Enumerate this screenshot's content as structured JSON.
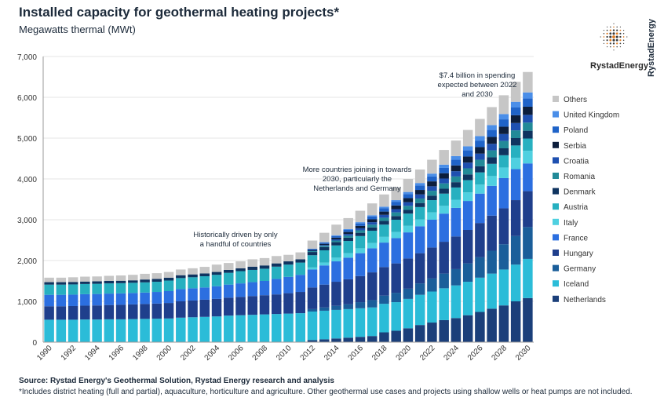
{
  "header": {
    "title": "Installed capacity for geothermal heating projects*",
    "subtitle": "Megawatts thermal (MWt)"
  },
  "brand": {
    "name": "RystadEnergy",
    "vertical": "RystadEnergy"
  },
  "footer": {
    "source": "Source: Rystad Energy's Geothermal Solution, Rystad Energy research and analysis",
    "note": "*Includes district heating (full and partial), aquaculture, horticulture and agriculture. Other geothermal use cases and projects using shallow wells or heat pumps are not included."
  },
  "annotations": [
    {
      "line1": "Historically driven by only",
      "line2": "a handful of countries"
    },
    {
      "line1": "More countries joining in towards",
      "line2": "2030, particularly the",
      "line3": "Netherlands and Germany"
    },
    {
      "line1": "$7.4 billion in spending",
      "line2": "expected between 2022",
      "line3": "and 2030"
    }
  ],
  "chart_data": {
    "type": "bar",
    "stacked": true,
    "ylim": [
      0,
      7000
    ],
    "yticks": [
      "0",
      "1,000",
      "2,000",
      "3,000",
      "4,000",
      "5,000",
      "6,000",
      "7,000"
    ],
    "xticks": [
      "1990",
      "1992",
      "1994",
      "1996",
      "1998",
      "2000",
      "2002",
      "2004",
      "2006",
      "2008",
      "2010",
      "2012",
      "2014",
      "2016",
      "2018",
      "2020",
      "2022",
      "2024",
      "2026",
      "2028",
      "2030"
    ],
    "categories": [
      "1990",
      "1991",
      "1992",
      "1993",
      "1994",
      "1995",
      "1996",
      "1997",
      "1998",
      "1999",
      "2000",
      "2001",
      "2002",
      "2003",
      "2004",
      "2005",
      "2006",
      "2007",
      "2008",
      "2009",
      "2010",
      "2011",
      "2012",
      "2013",
      "2014",
      "2015",
      "2016",
      "2017",
      "2018",
      "2019",
      "2020",
      "2021",
      "2022",
      "2023",
      "2024",
      "2025",
      "2026",
      "2027",
      "2028",
      "2029",
      "2030"
    ],
    "series": [
      {
        "name": "Netherlands",
        "color": "#1b3f7a",
        "values": [
          0,
          0,
          0,
          0,
          0,
          0,
          0,
          0,
          0,
          0,
          0,
          0,
          0,
          0,
          0,
          0,
          0,
          0,
          0,
          0,
          0,
          0,
          50,
          70,
          90,
          110,
          130,
          150,
          240,
          280,
          340,
          420,
          480,
          540,
          590,
          660,
          740,
          820,
          900,
          1000,
          1080
        ]
      },
      {
        "name": "Iceland",
        "color": "#2bbcd8",
        "values": [
          550,
          550,
          550,
          555,
          555,
          560,
          560,
          565,
          570,
          575,
          580,
          600,
          610,
          620,
          630,
          650,
          660,
          670,
          680,
          690,
          700,
          710,
          700,
          700,
          700,
          700,
          700,
          700,
          700,
          700,
          720,
          740,
          760,
          780,
          800,
          820,
          840,
          860,
          880,
          900,
          960
        ]
      },
      {
        "name": "Germany",
        "color": "#1a5e9a",
        "values": [
          0,
          0,
          0,
          0,
          0,
          0,
          0,
          0,
          0,
          0,
          0,
          0,
          0,
          0,
          0,
          0,
          0,
          0,
          0,
          0,
          0,
          0,
          60,
          80,
          100,
          120,
          150,
          180,
          200,
          230,
          250,
          280,
          320,
          360,
          400,
          450,
          500,
          560,
          620,
          700,
          780
        ]
      },
      {
        "name": "Hungary",
        "color": "#1f3f8c",
        "values": [
          330,
          330,
          335,
          340,
          345,
          350,
          355,
          360,
          365,
          370,
          380,
          400,
          410,
          420,
          430,
          440,
          450,
          460,
          470,
          480,
          500,
          520,
          530,
          560,
          590,
          610,
          640,
          680,
          700,
          720,
          740,
          740,
          760,
          780,
          800,
          820,
          840,
          860,
          880,
          880,
          880
        ]
      },
      {
        "name": "France",
        "color": "#2c6fe0",
        "values": [
          280,
          280,
          280,
          280,
          280,
          280,
          280,
          280,
          280,
          285,
          290,
          300,
          300,
          300,
          310,
          320,
          330,
          340,
          350,
          380,
          400,
          420,
          440,
          470,
          500,
          530,
          560,
          590,
          600,
          620,
          640,
          660,
          680,
          690,
          700,
          710,
          720,
          730,
          740,
          760,
          680
        ]
      },
      {
        "name": "Italy",
        "color": "#4fd0e0",
        "values": [
          0,
          0,
          0,
          0,
          0,
          0,
          0,
          0,
          0,
          0,
          0,
          0,
          0,
          0,
          0,
          0,
          0,
          0,
          0,
          0,
          0,
          0,
          50,
          70,
          90,
          110,
          120,
          130,
          140,
          150,
          160,
          170,
          180,
          190,
          200,
          210,
          220,
          240,
          260,
          280,
          310
        ]
      },
      {
        "name": "Austria",
        "color": "#27b0c0",
        "values": [
          250,
          250,
          250,
          250,
          250,
          250,
          250,
          250,
          250,
          250,
          260,
          270,
          270,
          275,
          280,
          290,
          300,
          300,
          300,
          300,
          300,
          300,
          300,
          300,
          300,
          300,
          300,
          300,
          300,
          300,
          300,
          300,
          300,
          300,
          300,
          300,
          300,
          300,
          300,
          300,
          300
        ]
      },
      {
        "name": "Denmark",
        "color": "#0f3460",
        "values": [
          60,
          60,
          60,
          60,
          60,
          60,
          60,
          60,
          70,
          70,
          70,
          70,
          70,
          70,
          70,
          70,
          70,
          80,
          80,
          80,
          80,
          80,
          80,
          80,
          80,
          80,
          80,
          80,
          90,
          90,
          90,
          100,
          110,
          120,
          130,
          140,
          150,
          160,
          170,
          180,
          190
        ]
      },
      {
        "name": "Romania",
        "color": "#228a98",
        "values": [
          0,
          0,
          0,
          0,
          0,
          0,
          0,
          0,
          0,
          0,
          0,
          0,
          0,
          0,
          0,
          0,
          0,
          0,
          0,
          0,
          0,
          0,
          20,
          30,
          40,
          50,
          60,
          70,
          80,
          90,
          100,
          110,
          120,
          130,
          140,
          150,
          160,
          170,
          180,
          190,
          200
        ]
      },
      {
        "name": "Croatia",
        "color": "#1e50b0",
        "values": [
          0,
          0,
          0,
          0,
          0,
          0,
          0,
          0,
          0,
          0,
          0,
          0,
          0,
          0,
          0,
          0,
          0,
          0,
          0,
          0,
          0,
          0,
          10,
          20,
          30,
          40,
          50,
          60,
          70,
          80,
          90,
          100,
          110,
          120,
          130,
          140,
          150,
          160,
          170,
          180,
          190
        ]
      },
      {
        "name": "Serbia",
        "color": "#0c1e3c",
        "values": [
          0,
          0,
          0,
          0,
          0,
          0,
          0,
          0,
          0,
          0,
          0,
          0,
          0,
          0,
          0,
          0,
          0,
          0,
          0,
          0,
          0,
          0,
          20,
          30,
          40,
          50,
          60,
          70,
          80,
          90,
          100,
          110,
          120,
          130,
          140,
          150,
          160,
          170,
          180,
          190,
          200
        ]
      },
      {
        "name": "Poland",
        "color": "#1f63c8",
        "values": [
          0,
          0,
          0,
          0,
          0,
          0,
          0,
          0,
          0,
          0,
          0,
          0,
          0,
          0,
          0,
          0,
          0,
          0,
          0,
          0,
          0,
          0,
          20,
          30,
          40,
          50,
          60,
          70,
          80,
          90,
          100,
          110,
          120,
          130,
          140,
          150,
          160,
          170,
          180,
          190,
          200
        ]
      },
      {
        "name": "United Kingdom",
        "color": "#4a8ee8",
        "values": [
          0,
          0,
          0,
          0,
          0,
          0,
          0,
          0,
          0,
          0,
          0,
          0,
          0,
          0,
          0,
          0,
          0,
          0,
          0,
          0,
          0,
          0,
          10,
          10,
          20,
          20,
          30,
          30,
          40,
          40,
          50,
          60,
          70,
          80,
          90,
          100,
          110,
          120,
          130,
          140,
          150
        ]
      },
      {
        "name": "Others",
        "color": "#c6c6c6",
        "values": [
          110,
          110,
          115,
          120,
          120,
          125,
          130,
          135,
          140,
          140,
          140,
          140,
          150,
          160,
          180,
          170,
          170,
          180,
          180,
          180,
          160,
          170,
          200,
          230,
          260,
          270,
          280,
          290,
          300,
          310,
          320,
          330,
          340,
          360,
          380,
          400,
          420,
          440,
          460,
          490,
          500
        ]
      }
    ]
  }
}
